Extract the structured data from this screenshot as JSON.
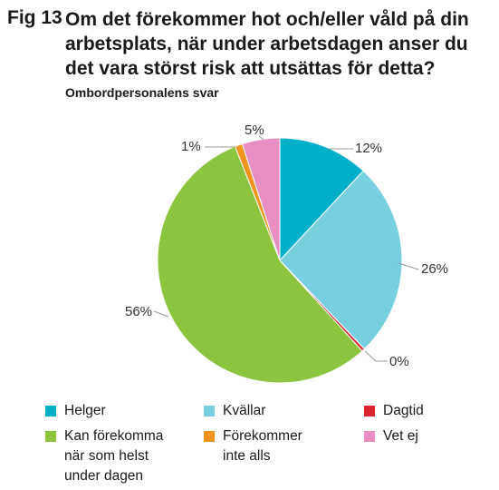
{
  "figure": {
    "label": "Fig 13",
    "title": "Om det förekommer hot och/eller våld på din arbetsplats, när under arbetsdagen anser du det vara störst risk att utsättas för detta?",
    "subtitle": "Ombordpersonalens svar"
  },
  "chart_data": {
    "type": "pie",
    "title": "Om det förekommer hot och/eller våld på din arbetsplats, när under arbetsdagen anser du det vara störst risk att utsättas för detta?",
    "subtitle": "Ombordpersonalens svar",
    "slices": [
      {
        "name": "Helger",
        "value": 12,
        "label": "12%",
        "color": "#00b0c8"
      },
      {
        "name": "Kvällar",
        "value": 26,
        "label": "26%",
        "color": "#78cfe0"
      },
      {
        "name": "Dagtid",
        "value": 0.4,
        "label": "0%",
        "color": "#d9262e"
      },
      {
        "name": "Kan förekomma när som helst under dagen",
        "value": 56,
        "label": "56%",
        "color": "#8cc43f"
      },
      {
        "name": "Förekommer inte alls",
        "value": 1,
        "label": "1%",
        "color": "#f2941d"
      },
      {
        "name": "Vet ej",
        "value": 5,
        "label": "5%",
        "color": "#e98ec3"
      }
    ],
    "legend_position": "bottom"
  },
  "legend": [
    {
      "text": "Helger",
      "color": "#00b0c8"
    },
    {
      "text": "Kvällar",
      "color": "#78cfe0"
    },
    {
      "text": "Dagtid",
      "color": "#d9262e"
    },
    {
      "text": "Kan förekomma\nnär som helst\nunder dagen",
      "color": "#8cc43f"
    },
    {
      "text": "Förekommer\ninte alls",
      "color": "#f2941d"
    },
    {
      "text": "Vet ej",
      "color": "#e98ec3"
    }
  ]
}
